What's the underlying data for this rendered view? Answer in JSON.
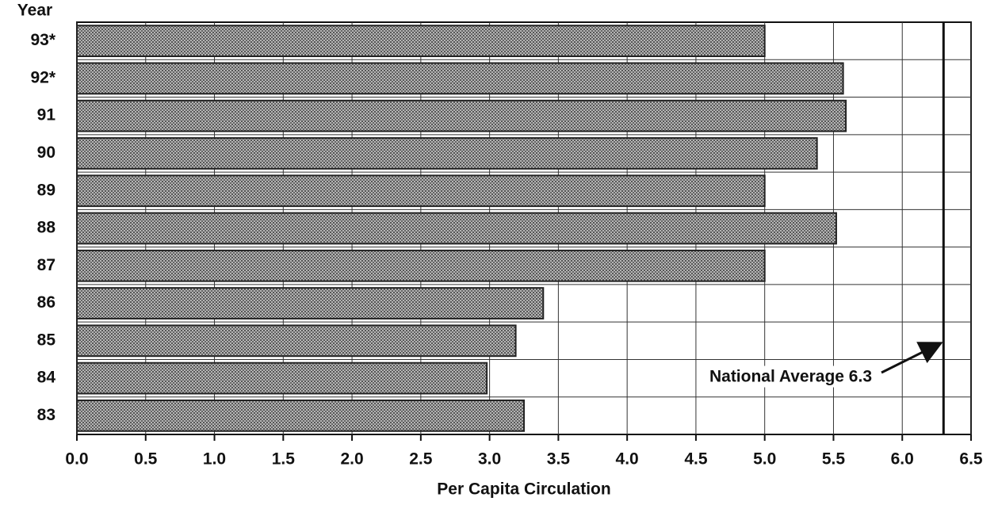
{
  "chart_data": {
    "type": "bar",
    "orientation": "horizontal",
    "y_axis_label": "Year",
    "x_axis_label": "Per Capita Circulation",
    "categories": [
      "93*",
      "92*",
      "91",
      "90",
      "89",
      "88",
      "87",
      "86",
      "85",
      "84",
      "83"
    ],
    "values": [
      5.0,
      5.57,
      5.59,
      5.38,
      5.0,
      5.52,
      5.0,
      3.39,
      3.19,
      2.98,
      3.25
    ],
    "color": "#8a8a8a",
    "xlim": [
      0,
      6.5
    ],
    "xticks": [
      {
        "value": 0,
        "label": "0.0"
      },
      0.5,
      {
        "value": 1,
        "label": "1.0"
      },
      1.5,
      {
        "value": 2,
        "label": "2.0"
      },
      2.5,
      {
        "value": 3,
        "label": "3.0"
      },
      3.5,
      {
        "value": 4,
        "label": "4.0"
      },
      4.5,
      {
        "value": 5,
        "label": "5.0"
      },
      5.5,
      {
        "value": 6,
        "label": "6.0"
      },
      6.5
    ],
    "grid": true,
    "reference_line": {
      "value": 6.3
    },
    "annotation": "National Average 6.3"
  }
}
